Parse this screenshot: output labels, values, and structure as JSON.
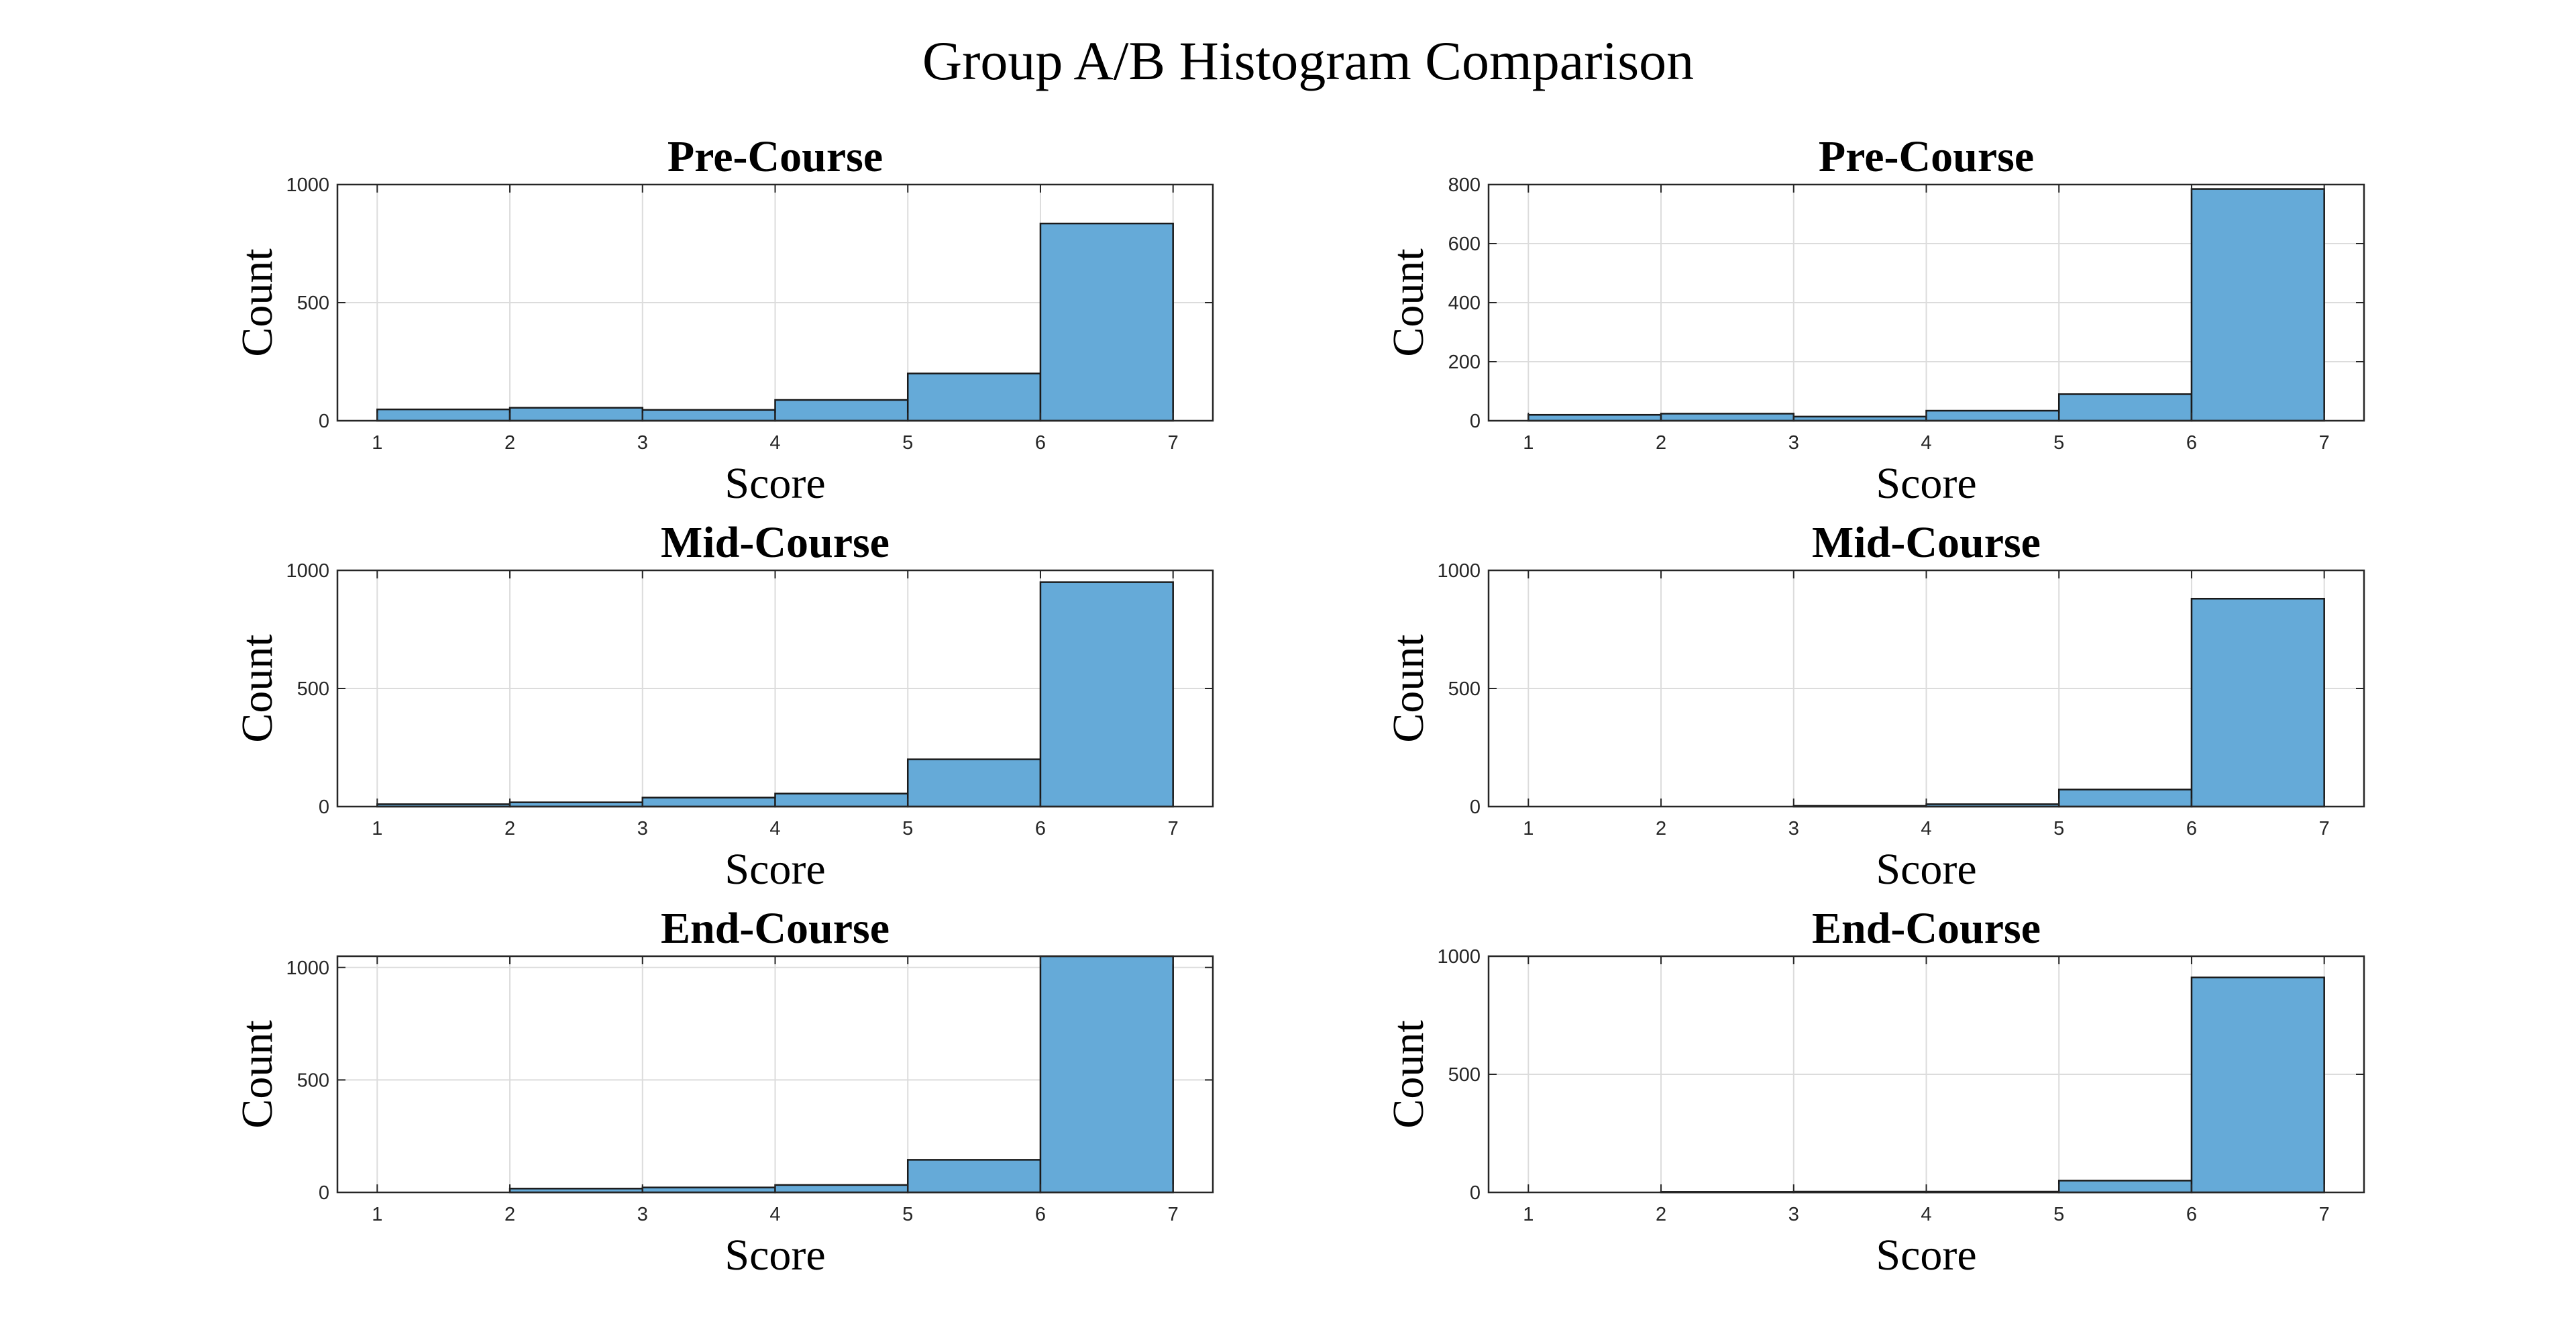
{
  "figure": {
    "title": "Group A/B Histogram Comparison"
  },
  "colors": {
    "bar_fill": "#65AAD8",
    "bar_edge": "#1a1a1a",
    "grid": "#dcdcdc",
    "axes": "#262626"
  },
  "chart_data": [
    {
      "type": "bar",
      "title": "Pre-Course",
      "xlabel": "Score",
      "ylabel": "Count",
      "bin_edges": [
        1,
        2,
        3,
        4,
        5,
        6,
        7
      ],
      "values": [
        48,
        55,
        46,
        88,
        200,
        835
      ],
      "xlim": [
        0.7,
        7.3
      ],
      "ylim": [
        0,
        1000
      ],
      "xticks": [
        1,
        2,
        3,
        4,
        5,
        6,
        7
      ],
      "yticks": [
        0,
        500,
        1000
      ],
      "grid": true
    },
    {
      "type": "bar",
      "title": "Pre-Course",
      "xlabel": "Score",
      "ylabel": "Count",
      "bin_edges": [
        1,
        2,
        3,
        4,
        5,
        6,
        7
      ],
      "values": [
        20,
        24,
        14,
        34,
        90,
        785
      ],
      "xlim": [
        0.7,
        7.3
      ],
      "ylim": [
        0,
        800
      ],
      "xticks": [
        1,
        2,
        3,
        4,
        5,
        6,
        7
      ],
      "yticks": [
        0,
        200,
        400,
        600,
        800
      ],
      "grid": true
    },
    {
      "type": "bar",
      "title": "Mid-Course",
      "xlabel": "Score",
      "ylabel": "Count",
      "bin_edges": [
        1,
        2,
        3,
        4,
        5,
        6,
        7
      ],
      "values": [
        10,
        18,
        38,
        55,
        200,
        950
      ],
      "xlim": [
        0.7,
        7.3
      ],
      "ylim": [
        0,
        1000
      ],
      "xticks": [
        1,
        2,
        3,
        4,
        5,
        6,
        7
      ],
      "yticks": [
        0,
        500,
        1000
      ],
      "grid": true
    },
    {
      "type": "bar",
      "title": "Mid-Course",
      "xlabel": "Score",
      "ylabel": "Count",
      "bin_edges": [
        1,
        2,
        3,
        4,
        5,
        6,
        7
      ],
      "values": [
        0,
        0,
        3,
        10,
        72,
        880
      ],
      "xlim": [
        0.7,
        7.3
      ],
      "ylim": [
        0,
        1000
      ],
      "xticks": [
        1,
        2,
        3,
        4,
        5,
        6,
        7
      ],
      "yticks": [
        0,
        500,
        1000
      ],
      "grid": true
    },
    {
      "type": "bar",
      "title": "End-Course",
      "xlabel": "Score",
      "ylabel": "Count",
      "bin_edges": [
        1,
        2,
        3,
        4,
        5,
        6,
        7
      ],
      "values": [
        0,
        17,
        22,
        33,
        145,
        1050
      ],
      "xlim": [
        0.7,
        7.3
      ],
      "ylim": [
        0,
        1050
      ],
      "xticks": [
        1,
        2,
        3,
        4,
        5,
        6,
        7
      ],
      "yticks": [
        0,
        500,
        1000
      ],
      "grid": true
    },
    {
      "type": "bar",
      "title": "End-Course",
      "xlabel": "Score",
      "ylabel": "Count",
      "bin_edges": [
        1,
        2,
        3,
        4,
        5,
        6,
        7
      ],
      "values": [
        0,
        2,
        3,
        3,
        50,
        910
      ],
      "xlim": [
        0.7,
        7.3
      ],
      "ylim": [
        0,
        1000
      ],
      "xticks": [
        1,
        2,
        3,
        4,
        5,
        6,
        7
      ],
      "yticks": [
        0,
        500,
        1000
      ],
      "grid": true
    }
  ]
}
